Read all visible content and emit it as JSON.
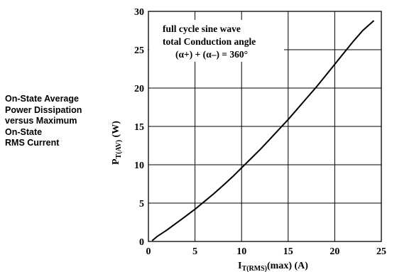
{
  "side_title": [
    "On-State Average",
    "Power Dissipation",
    "versus Maximum",
    "On-State",
    "RMS Current"
  ],
  "chart_data": {
    "type": "line",
    "x_ticks": [
      0,
      5,
      10,
      15,
      20,
      25
    ],
    "y_ticks": [
      0,
      5,
      10,
      15,
      20,
      25,
      30
    ],
    "xlim": [
      0,
      25
    ],
    "ylim": [
      0,
      30
    ],
    "grid": true,
    "xlabel": {
      "main": "I",
      "sub": "T(RMS)",
      "rest": "(max) (A)"
    },
    "ylabel": {
      "main": "P",
      "sub": "T(AV)",
      "rest": " (W)"
    },
    "annotation": [
      "full cycle sine wave",
      "total Conduction angle",
      "(α+) + (α–) = 360°"
    ],
    "series": [
      {
        "x": [
          0.4,
          1,
          2,
          3,
          4,
          5,
          6,
          7,
          8,
          9,
          10,
          11,
          12,
          13,
          14,
          15,
          16,
          17,
          18,
          19,
          20,
          21,
          22,
          23,
          24.2
        ],
        "y": [
          0.1,
          0.7,
          1.5,
          2.4,
          3.3,
          4.2,
          5.2,
          6.2,
          7.3,
          8.4,
          9.6,
          10.8,
          12.0,
          13.3,
          14.6,
          15.9,
          17.3,
          18.7,
          20.1,
          21.6,
          23.1,
          24.6,
          26.1,
          27.5,
          28.8
        ]
      }
    ]
  }
}
